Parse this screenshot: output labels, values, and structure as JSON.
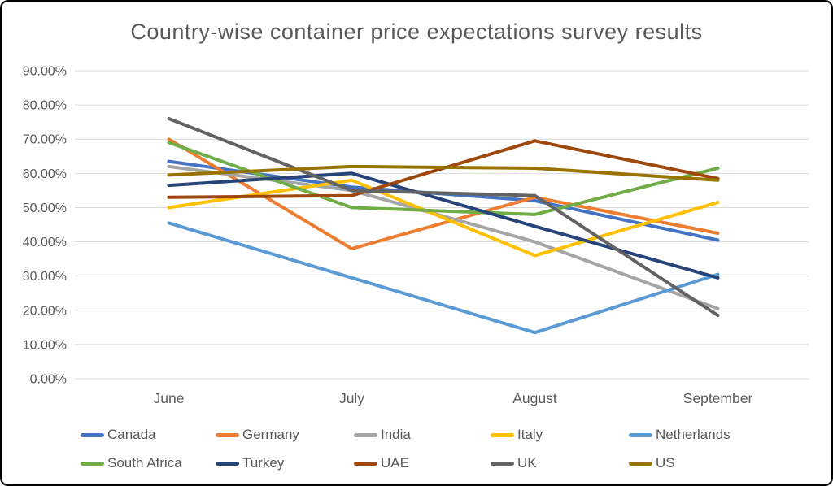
{
  "title": "Country-wise container price expectations survey results",
  "chart_data": {
    "type": "line",
    "x": [
      "June",
      "July",
      "August",
      "September"
    ],
    "series": [
      {
        "name": "Canada",
        "color": "#4472C4",
        "values": [
          63.5,
          56.0,
          52.0,
          40.5
        ]
      },
      {
        "name": "Germany",
        "color": "#ED7D31",
        "values": [
          70.0,
          38.0,
          53.0,
          42.5
        ]
      },
      {
        "name": "India",
        "color": "#A5A5A5",
        "values": [
          62.0,
          55.0,
          40.0,
          20.5
        ]
      },
      {
        "name": "Italy",
        "color": "#FFC000",
        "values": [
          50.0,
          58.0,
          36.0,
          51.5
        ]
      },
      {
        "name": "Netherlands",
        "color": "#5B9BD5",
        "values": [
          45.5,
          29.5,
          13.5,
          30.5
        ]
      },
      {
        "name": "South Africa",
        "color": "#70AD47",
        "values": [
          69.0,
          50.0,
          48.0,
          61.5
        ]
      },
      {
        "name": "Turkey",
        "color": "#264478",
        "values": [
          56.5,
          60.0,
          44.5,
          29.5
        ]
      },
      {
        "name": "UAE",
        "color": "#9E480E",
        "values": [
          53.0,
          53.5,
          69.5,
          58.5
        ]
      },
      {
        "name": "UK",
        "color": "#636363",
        "values": [
          76.0,
          55.0,
          53.5,
          18.5
        ]
      },
      {
        "name": "US",
        "color": "#997300",
        "values": [
          59.5,
          62.0,
          61.5,
          58.0
        ]
      }
    ],
    "y_ticks": [
      "90.00%",
      "80.00%",
      "70.00%",
      "60.00%",
      "50.00%",
      "40.00%",
      "30.00%",
      "20.00%",
      "10.00%",
      "0.00%"
    ],
    "ylim": [
      0,
      90
    ],
    "xlabel": "",
    "ylabel": "",
    "grid": true,
    "legend_position": "bottom"
  },
  "colors": {
    "grid": "#D9D9D9",
    "axis_text": "#595959",
    "title_text": "#595959",
    "border": "#000000",
    "background": "#FFFFFF"
  }
}
